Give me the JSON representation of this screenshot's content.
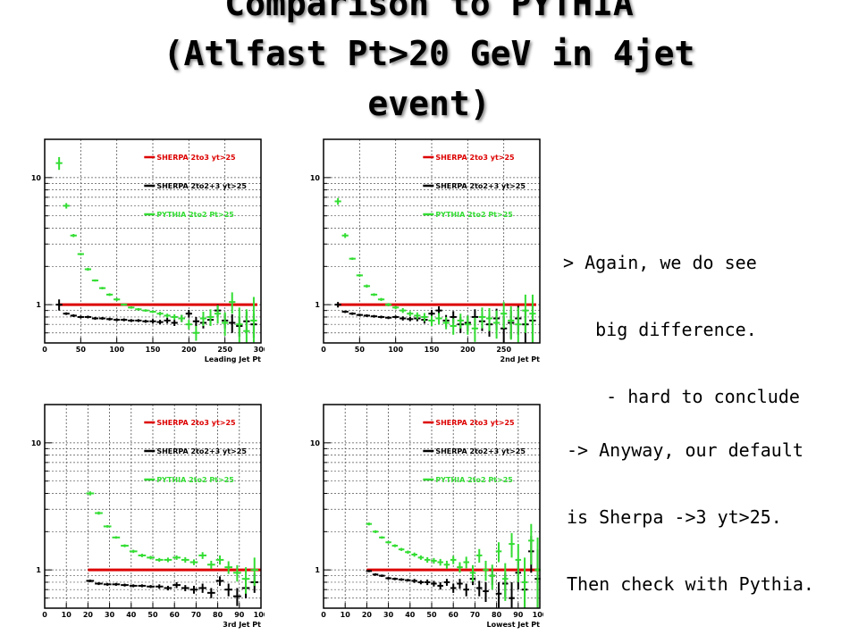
{
  "title": {
    "line1": "Comparison to PYTHIA",
    "line2": "(Atlfast Pt>20 GeV in 4jet",
    "line3": "event)"
  },
  "notes": {
    "note1": {
      "line1": "> Again, we do see",
      "line2": "   big difference.",
      "line3": "    - hard to conclude"
    },
    "note2": {
      "line1": "-> Anyway, our default",
      "line2": "is Sherpa ->3 yt>25.",
      "line3": "Then check with Pythia."
    }
  },
  "colors": {
    "sherpa_2to3": "#dd0000",
    "sherpa_2to2p3": "#000000",
    "pythia": "#33dd33",
    "frame": "#000000",
    "grid": "#555555"
  },
  "chart_data": [
    {
      "type": "scatter",
      "xlabel": "Leading Jet Pt",
      "ylabel": "",
      "log_y": true,
      "xlim": [
        0,
        300
      ],
      "ylim": [
        0.5,
        20
      ],
      "xticks": [
        "0",
        "50",
        "100",
        "150",
        "200",
        "250",
        "300"
      ],
      "yticks": [
        "1",
        "10"
      ],
      "grid": true,
      "legend_position": "top-right",
      "legend": [
        "SHERPA 2to3 yt>25",
        "SHERPA 2to2+3 yt>25",
        "PYTHIA 2to2 Pt>25"
      ],
      "series": [
        {
          "name": "SHERPA 2to3 yt>25",
          "style": "line",
          "x": [
            20,
            295
          ],
          "y": [
            1.0,
            1.0
          ]
        },
        {
          "name": "SHERPA 2to2+3 yt>25",
          "style": "errorbar",
          "x": [
            20,
            30,
            40,
            50,
            60,
            70,
            80,
            90,
            100,
            110,
            120,
            130,
            140,
            150,
            160,
            170,
            180,
            190,
            200,
            210,
            220,
            230,
            240,
            250,
            260,
            270,
            280,
            290
          ],
          "y": [
            1.0,
            0.85,
            0.82,
            0.8,
            0.8,
            0.78,
            0.78,
            0.77,
            0.76,
            0.76,
            0.75,
            0.75,
            0.74,
            0.74,
            0.73,
            0.75,
            0.72,
            0.78,
            0.85,
            0.74,
            0.72,
            0.76,
            0.9,
            0.75,
            0.72,
            0.68,
            0.74,
            0.7
          ],
          "err": [
            0.1,
            0.02,
            0.02,
            0.02,
            0.02,
            0.02,
            0.02,
            0.02,
            0.02,
            0.02,
            0.02,
            0.02,
            0.02,
            0.03,
            0.03,
            0.04,
            0.04,
            0.05,
            0.06,
            0.06,
            0.07,
            0.08,
            0.1,
            0.1,
            0.12,
            0.12,
            0.14,
            0.15
          ]
        },
        {
          "name": "PYTHIA 2to2 Pt>25",
          "style": "errorbar",
          "x": [
            20,
            30,
            40,
            50,
            60,
            70,
            80,
            90,
            100,
            110,
            120,
            130,
            140,
            150,
            160,
            170,
            180,
            190,
            200,
            210,
            220,
            230,
            240,
            250,
            260,
            270,
            280,
            290
          ],
          "y": [
            13,
            6,
            3.5,
            2.5,
            1.9,
            1.55,
            1.35,
            1.2,
            1.1,
            1.0,
            0.95,
            0.92,
            0.9,
            0.88,
            0.85,
            0.82,
            0.8,
            0.78,
            0.7,
            0.6,
            0.78,
            0.8,
            0.85,
            0.72,
            1.05,
            0.7,
            0.62,
            0.75
          ],
          "err": [
            1.5,
            0.3,
            0.1,
            0.05,
            0.05,
            0.03,
            0.03,
            0.03,
            0.03,
            0.02,
            0.02,
            0.02,
            0.02,
            0.02,
            0.03,
            0.03,
            0.04,
            0.05,
            0.06,
            0.08,
            0.1,
            0.12,
            0.14,
            0.15,
            0.2,
            0.25,
            0.3,
            0.4
          ]
        }
      ]
    },
    {
      "type": "scatter",
      "xlabel": "2nd Jet Pt",
      "ylabel": "",
      "log_y": true,
      "xlim": [
        0,
        300
      ],
      "ylim": [
        0.5,
        20
      ],
      "xticks": [
        "0",
        "50",
        "100",
        "150",
        "200",
        "250"
      ],
      "yticks": [
        "1",
        "10"
      ],
      "grid": true,
      "legend_position": "top-right",
      "legend": [
        "SHERPA 2to3 yt>25",
        "SHERPA 2to2+3 yt>25",
        "PYTHIA 2to2 Pt>25"
      ],
      "series": [
        {
          "name": "SHERPA 2to3 yt>25",
          "style": "line",
          "x": [
            20,
            295
          ],
          "y": [
            1.0,
            1.0
          ]
        },
        {
          "name": "SHERPA 2to2+3 yt>25",
          "style": "errorbar",
          "x": [
            20,
            30,
            40,
            50,
            60,
            70,
            80,
            90,
            100,
            110,
            120,
            130,
            140,
            150,
            160,
            170,
            180,
            190,
            200,
            210,
            220,
            230,
            240,
            250,
            260,
            270,
            280,
            290
          ],
          "y": [
            1.0,
            0.88,
            0.85,
            0.83,
            0.82,
            0.81,
            0.8,
            0.79,
            0.8,
            0.78,
            0.77,
            0.78,
            0.76,
            0.85,
            0.9,
            0.75,
            0.8,
            0.7,
            0.72,
            0.8,
            0.74,
            0.7,
            0.78,
            0.65,
            0.72,
            0.78,
            0.7,
            0.75
          ],
          "err": [
            0.05,
            0.02,
            0.02,
            0.02,
            0.02,
            0.02,
            0.02,
            0.02,
            0.02,
            0.03,
            0.03,
            0.04,
            0.05,
            0.06,
            0.07,
            0.08,
            0.09,
            0.1,
            0.1,
            0.12,
            0.12,
            0.14,
            0.15,
            0.16,
            0.18,
            0.2,
            0.22,
            0.25
          ]
        },
        {
          "name": "PYTHIA 2to2 Pt>25",
          "style": "errorbar",
          "x": [
            20,
            30,
            40,
            50,
            60,
            70,
            80,
            90,
            100,
            110,
            120,
            130,
            140,
            150,
            160,
            170,
            180,
            190,
            200,
            210,
            220,
            230,
            240,
            250,
            260,
            270,
            280,
            290
          ],
          "y": [
            6.5,
            3.5,
            2.3,
            1.7,
            1.4,
            1.2,
            1.1,
            1.0,
            0.95,
            0.9,
            0.85,
            0.82,
            0.8,
            0.75,
            0.78,
            0.72,
            0.68,
            0.75,
            0.7,
            0.65,
            0.8,
            0.78,
            0.72,
            0.85,
            0.75,
            0.7,
            0.9,
            0.85
          ],
          "err": [
            0.4,
            0.15,
            0.05,
            0.04,
            0.04,
            0.03,
            0.03,
            0.03,
            0.03,
            0.04,
            0.04,
            0.05,
            0.06,
            0.07,
            0.08,
            0.08,
            0.1,
            0.1,
            0.12,
            0.14,
            0.15,
            0.16,
            0.18,
            0.2,
            0.22,
            0.25,
            0.3,
            0.35
          ]
        }
      ]
    },
    {
      "type": "scatter",
      "xlabel": "3rd Jet Pt",
      "ylabel": "",
      "log_y": true,
      "xlim": [
        0,
        100
      ],
      "ylim": [
        0.5,
        20
      ],
      "xticks": [
        "0",
        "10",
        "20",
        "30",
        "40",
        "50",
        "60",
        "70",
        "80",
        "90",
        "100"
      ],
      "yticks": [
        "1",
        "10"
      ],
      "grid": true,
      "legend_position": "top-right",
      "legend": [
        "SHERPA 2to3 yt>25",
        "SHERPA 2to2+3 yt>25",
        "PYTHIA 2to2 Pt>25"
      ],
      "series": [
        {
          "name": "SHERPA 2to3 yt>25",
          "style": "line",
          "x": [
            20,
            100
          ],
          "y": [
            1.0,
            1.0
          ]
        },
        {
          "name": "SHERPA 2to2+3 yt>25",
          "style": "errorbar",
          "x": [
            21,
            25,
            29,
            33,
            37,
            41,
            45,
            49,
            53,
            57,
            61,
            65,
            69,
            73,
            77,
            81,
            85,
            89,
            93,
            97
          ],
          "y": [
            0.82,
            0.78,
            0.77,
            0.77,
            0.76,
            0.75,
            0.75,
            0.74,
            0.74,
            0.72,
            0.76,
            0.72,
            0.7,
            0.72,
            0.66,
            0.82,
            0.7,
            0.62,
            0.72,
            0.8
          ],
          "err": [
            0.02,
            0.02,
            0.02,
            0.02,
            0.02,
            0.02,
            0.02,
            0.02,
            0.03,
            0.03,
            0.04,
            0.04,
            0.05,
            0.06,
            0.06,
            0.07,
            0.08,
            0.1,
            0.12,
            0.14
          ]
        },
        {
          "name": "PYTHIA 2to2 Pt>25",
          "style": "errorbar",
          "x": [
            21,
            25,
            29,
            33,
            37,
            41,
            45,
            49,
            53,
            57,
            61,
            65,
            69,
            73,
            77,
            81,
            85,
            89,
            93,
            97
          ],
          "y": [
            4.0,
            2.8,
            2.2,
            1.8,
            1.55,
            1.4,
            1.3,
            1.25,
            1.2,
            1.2,
            1.25,
            1.2,
            1.15,
            1.3,
            1.1,
            1.2,
            1.05,
            0.95,
            0.85,
            1.0
          ],
          "err": [
            0.15,
            0.08,
            0.05,
            0.04,
            0.04,
            0.04,
            0.04,
            0.04,
            0.04,
            0.05,
            0.05,
            0.06,
            0.06,
            0.08,
            0.08,
            0.1,
            0.12,
            0.14,
            0.2,
            0.25
          ]
        }
      ]
    },
    {
      "type": "scatter",
      "xlabel": "Lowest Jet Pt",
      "ylabel": "",
      "log_y": true,
      "xlim": [
        0,
        100
      ],
      "ylim": [
        0.5,
        20
      ],
      "xticks": [
        "0",
        "10",
        "20",
        "30",
        "40",
        "50",
        "60",
        "70",
        "80",
        "90",
        "100"
      ],
      "yticks": [
        "1",
        "10"
      ],
      "grid": true,
      "legend_position": "top-right",
      "legend": [
        "SHERPA 2to3 yt>25",
        "SHERPA 2to2+3 yt>25",
        "PYTHIA 2to2 Pt>25"
      ],
      "series": [
        {
          "name": "SHERPA 2to3 yt>25",
          "style": "line",
          "x": [
            20,
            100
          ],
          "y": [
            1.0,
            1.0
          ]
        },
        {
          "name": "SHERPA 2to2+3 yt>25",
          "style": "errorbar",
          "x": [
            21,
            24,
            27,
            30,
            33,
            36,
            39,
            42,
            45,
            48,
            51,
            54,
            57,
            60,
            63,
            66,
            69,
            72,
            75,
            78,
            81,
            84,
            87,
            90,
            93,
            96,
            99
          ],
          "y": [
            0.98,
            0.92,
            0.9,
            0.86,
            0.85,
            0.84,
            0.83,
            0.82,
            0.8,
            0.8,
            0.78,
            0.75,
            0.8,
            0.72,
            0.78,
            0.7,
            0.85,
            0.72,
            0.68,
            0.9,
            0.65,
            0.78,
            0.6,
            0.95,
            0.7,
            1.4,
            0.85
          ],
          "err": [
            0.02,
            0.02,
            0.02,
            0.02,
            0.02,
            0.02,
            0.02,
            0.03,
            0.03,
            0.04,
            0.04,
            0.05,
            0.05,
            0.06,
            0.07,
            0.08,
            0.09,
            0.1,
            0.12,
            0.14,
            0.15,
            0.17,
            0.2,
            0.25,
            0.3,
            0.45,
            0.6
          ]
        },
        {
          "name": "PYTHIA 2to2 Pt>25",
          "style": "errorbar",
          "x": [
            21,
            24,
            27,
            30,
            33,
            36,
            39,
            42,
            45,
            48,
            51,
            54,
            57,
            60,
            63,
            66,
            69,
            72,
            75,
            78,
            81,
            84,
            87,
            90,
            93,
            96,
            99
          ],
          "y": [
            2.3,
            2.0,
            1.8,
            1.65,
            1.55,
            1.45,
            1.38,
            1.32,
            1.25,
            1.2,
            1.18,
            1.15,
            1.1,
            1.2,
            1.05,
            1.15,
            0.95,
            1.3,
            1.0,
            0.9,
            1.4,
            0.85,
            1.6,
            1.2,
            0.8,
            1.7,
            1.0
          ],
          "err": [
            0.06,
            0.05,
            0.04,
            0.04,
            0.04,
            0.04,
            0.04,
            0.05,
            0.05,
            0.06,
            0.06,
            0.07,
            0.08,
            0.09,
            0.1,
            0.12,
            0.14,
            0.16,
            0.18,
            0.2,
            0.25,
            0.28,
            0.35,
            0.4,
            0.45,
            0.6,
            0.8
          ]
        }
      ]
    }
  ]
}
